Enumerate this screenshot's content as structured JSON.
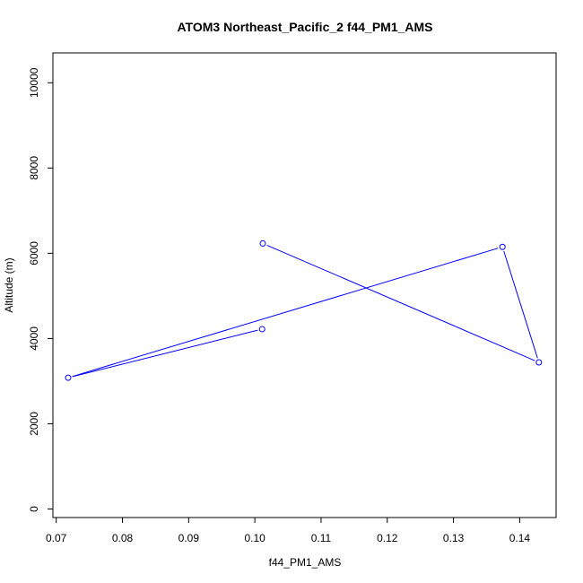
{
  "chart_data": {
    "type": "line",
    "title": "ATOM3 Northeast_Pacific_2 f44_PM1_AMS",
    "xlabel": "f44_PM1_AMS",
    "ylabel": "Altitude (m)",
    "xlim": [
      0.0695,
      0.1455
    ],
    "ylim": [
      -200,
      10700
    ],
    "x_ticks": [
      0.07,
      0.08,
      0.09,
      0.1,
      0.11,
      0.12,
      0.13,
      0.14
    ],
    "x_tick_labels": [
      "0.07",
      "0.08",
      "0.09",
      "0.10",
      "0.11",
      "0.12",
      "0.13",
      "0.14"
    ],
    "y_ticks": [
      0,
      2000,
      4000,
      6000,
      8000,
      10000
    ],
    "y_tick_labels": [
      "0",
      "2000",
      "4000",
      "6000",
      "8000",
      "10000"
    ],
    "grid": false,
    "series": [
      {
        "color": "#0000ff",
        "marker": "open-circle",
        "x": [
          0.1012,
          0.1429,
          0.1374,
          0.0718,
          0.1011
        ],
        "y": [
          6230,
          3440,
          6150,
          3080,
          4220
        ]
      }
    ]
  }
}
